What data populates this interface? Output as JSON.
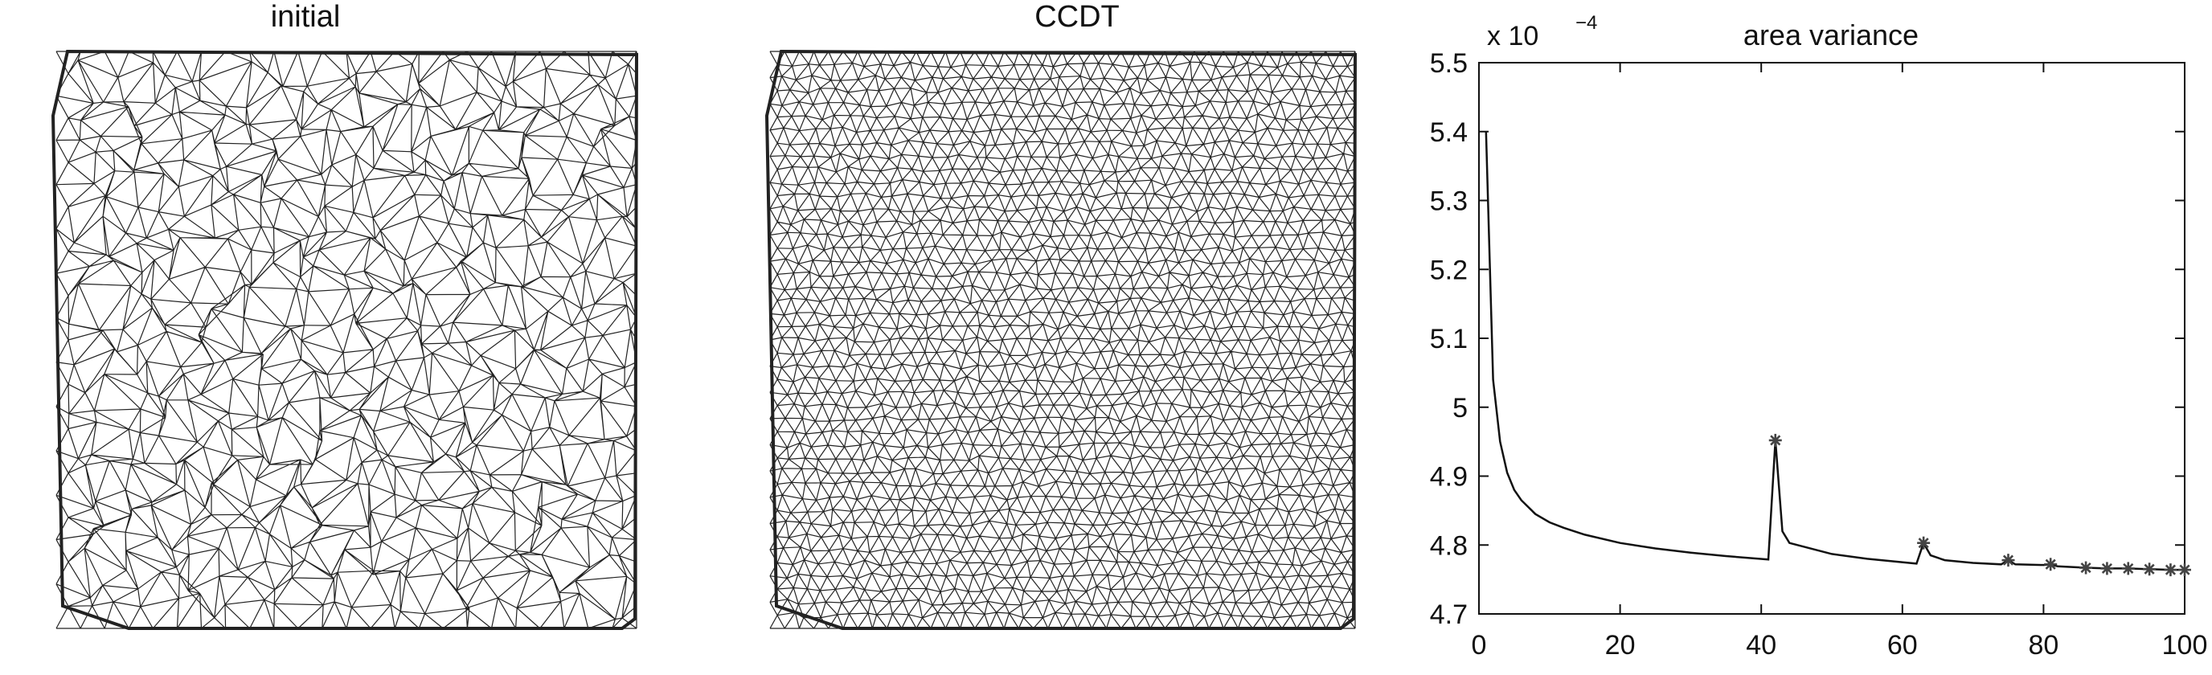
{
  "panels": {
    "initial": {
      "title": "initial"
    },
    "ccdt": {
      "title": "CCDT"
    }
  },
  "chart_data": {
    "type": "line",
    "title": "area variance",
    "xlabel": "",
    "ylabel": "",
    "exponent_label": "x 10",
    "exponent_power": "−4",
    "xlim": [
      0,
      100
    ],
    "ylim": [
      4.7,
      5.5
    ],
    "x_ticks": [
      0,
      20,
      40,
      60,
      80,
      100
    ],
    "y_ticks": [
      4.7,
      4.8,
      4.9,
      5.0,
      5.1,
      5.2,
      5.3,
      5.4,
      5.5
    ],
    "y_tick_labels": [
      "4.7",
      "4.8",
      "4.9",
      "5",
      "5.1",
      "5.2",
      "5.3",
      "5.4",
      "5.5"
    ],
    "grid": false,
    "series": [
      {
        "x": [
          1,
          2,
          3,
          4,
          5,
          6,
          7,
          8,
          10,
          12,
          15,
          20,
          25,
          30,
          35,
          41,
          42,
          43,
          44,
          50,
          55,
          62,
          63,
          64,
          66,
          70,
          74,
          75,
          76,
          80,
          81,
          82,
          86,
          89,
          92,
          95,
          98,
          100
        ],
        "values": [
          5.4,
          5.04,
          4.95,
          4.905,
          4.88,
          4.865,
          4.855,
          4.845,
          4.833,
          4.825,
          4.815,
          4.803,
          4.795,
          4.789,
          4.784,
          4.779,
          4.952,
          4.82,
          4.803,
          4.787,
          4.78,
          4.773,
          4.803,
          4.785,
          4.778,
          4.774,
          4.772,
          4.778,
          4.772,
          4.771,
          4.772,
          4.769,
          4.767,
          4.766,
          4.766,
          4.765,
          4.764,
          4.764
        ]
      }
    ],
    "markers": {
      "symbol": "*",
      "x": [
        42,
        63,
        75,
        81,
        86,
        89,
        92,
        95,
        98,
        100
      ],
      "values": [
        4.952,
        4.803,
        4.778,
        4.772,
        4.767,
        4.766,
        4.766,
        4.765,
        4.764,
        4.764
      ]
    }
  }
}
